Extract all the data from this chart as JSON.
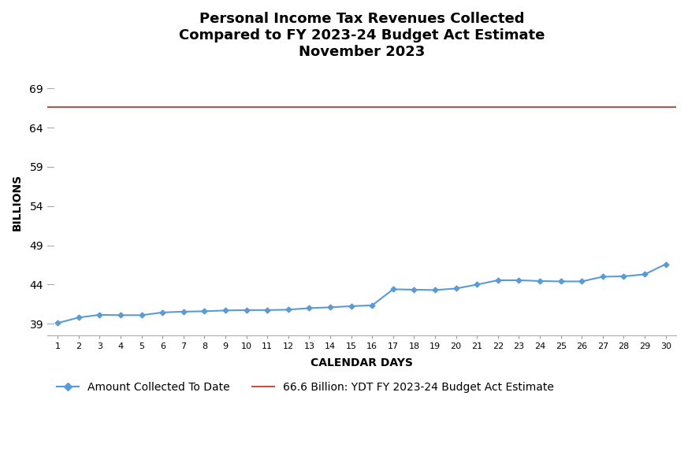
{
  "title": "Personal Income Tax Revenues Collected\nCompared to FY 2023-24 Budget Act Estimate\nNovember 2023",
  "xlabel": "CALENDAR DAYS",
  "ylabel": "BILLIONS",
  "budget_estimate": 66.6,
  "budget_label": "66.6 Billion: YDT FY 2023-24 Budget Act Estimate",
  "collected_label": "Amount Collected To Date",
  "ylim_min": 37.5,
  "ylim_max": 71.5,
  "yticks": [
    39,
    44,
    49,
    54,
    59,
    64,
    69
  ],
  "line_color": "#5B9BD5",
  "budget_line_color": "#C0504D",
  "days": [
    1,
    2,
    3,
    4,
    5,
    6,
    7,
    8,
    9,
    10,
    11,
    12,
    13,
    14,
    15,
    16,
    17,
    18,
    19,
    20,
    21,
    22,
    23,
    24,
    25,
    26,
    27,
    28,
    29,
    30
  ],
  "values": [
    39.1,
    39.8,
    40.15,
    40.1,
    40.1,
    40.45,
    40.55,
    40.6,
    40.7,
    40.75,
    40.75,
    40.8,
    41.0,
    41.1,
    41.25,
    41.35,
    43.4,
    43.35,
    43.3,
    43.5,
    44.0,
    44.55,
    44.55,
    44.45,
    44.4,
    44.4,
    45.0,
    45.05,
    45.3,
    46.6
  ]
}
